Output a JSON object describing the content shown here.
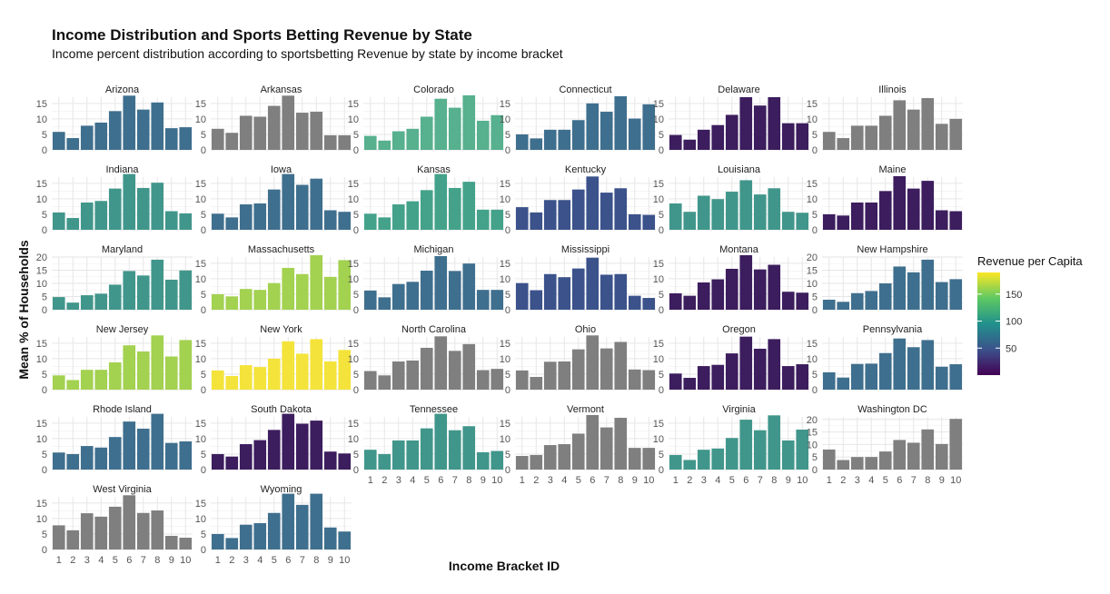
{
  "chart_data": {
    "type": "bar",
    "layout": "faceted small multiples",
    "title": "Income Distribution and Sports Betting Revenue by State",
    "subtitle": "Income percent distribution according to sportsbetting Revenue by state by income bracket",
    "xlabel": "Income Bracket ID",
    "ylabel": "Mean % of Households",
    "categories": [
      "1",
      "2",
      "3",
      "4",
      "5",
      "6",
      "7",
      "8",
      "9",
      "10"
    ],
    "legend": {
      "title": "Revenue per Capita",
      "placement": "right",
      "ticks": [
        "150",
        "100",
        "50"
      ],
      "ticks_values": [
        150,
        100,
        50
      ],
      "range": [
        0,
        190
      ],
      "colors": [
        "#440154",
        "#3b528b",
        "#21918c",
        "#5ec962",
        "#fde725"
      ]
    },
    "no_data_color": "#7f7f7f",
    "panels": [
      {
        "name": "Arizona",
        "color": "#3f6f8e",
        "ymax": 17,
        "ticks": [
          "0",
          "5",
          "10",
          "15"
        ],
        "values": [
          5.8,
          3.8,
          7.8,
          8.8,
          12.5,
          17.5,
          13,
          15.3,
          7,
          7.3
        ]
      },
      {
        "name": "Arkansas",
        "color": "#7f7f7f",
        "ymax": 17,
        "ticks": [
          "0",
          "5",
          "10",
          "15"
        ],
        "values": [
          6.8,
          5.5,
          11,
          10.7,
          14.2,
          17.5,
          12,
          12.3,
          4.7,
          4.7
        ]
      },
      {
        "name": "Colorado",
        "color": "#57b08e",
        "ymax": 17,
        "ticks": [
          "0",
          "5",
          "10",
          "15"
        ],
        "values": [
          4.5,
          3,
          6,
          6.8,
          10.7,
          16.5,
          13.6,
          17.6,
          9.4,
          11.2
        ]
      },
      {
        "name": "Connecticut",
        "color": "#3f6f8e",
        "ymax": 17,
        "ticks": [
          "0",
          "5",
          "10",
          "15"
        ],
        "values": [
          5,
          3.7,
          6.5,
          6.5,
          9.6,
          15,
          12.3,
          17.3,
          10.1,
          14.7
        ]
      },
      {
        "name": "Delaware",
        "color": "#3c1d5e",
        "ymax": 17,
        "ticks": [
          "0",
          "5",
          "10",
          "15"
        ],
        "values": [
          4.8,
          3.3,
          6.5,
          8,
          11.3,
          17,
          14.3,
          17,
          8.6,
          8.6
        ]
      },
      {
        "name": "Illinois",
        "color": "#7f7f7f",
        "ymax": 17,
        "ticks": [
          "0",
          "5",
          "10",
          "15"
        ],
        "values": [
          5.8,
          3.8,
          7.8,
          7.8,
          11,
          16,
          13,
          16.7,
          8.4,
          10
        ]
      },
      {
        "name": "Indiana",
        "color": "#41968b",
        "ymax": 17,
        "ticks": [
          "0",
          "5",
          "10",
          "15"
        ],
        "values": [
          5.6,
          3.8,
          8.8,
          9.3,
          13.3,
          18,
          13.5,
          15.2,
          6,
          5.3
        ]
      },
      {
        "name": "Iowa",
        "color": "#3f6f8e",
        "ymax": 17,
        "ticks": [
          "0",
          "5",
          "10",
          "15"
        ],
        "values": [
          5.2,
          4,
          8.2,
          8.5,
          13,
          18,
          14.5,
          16.5,
          6.3,
          5.8
        ]
      },
      {
        "name": "Kansas",
        "color": "#44a28a",
        "ymax": 17,
        "ticks": [
          "0",
          "5",
          "10",
          "15"
        ],
        "values": [
          5.2,
          4,
          8.2,
          9.2,
          12.8,
          18,
          13.5,
          15.5,
          6.5,
          6.5
        ]
      },
      {
        "name": "Kentucky",
        "color": "#3b528b",
        "ymax": 17,
        "ticks": [
          "0",
          "5",
          "10",
          "15"
        ],
        "values": [
          7.3,
          5.6,
          9.6,
          9.6,
          13,
          17.2,
          12,
          13.4,
          5,
          4.8
        ]
      },
      {
        "name": "Louisiana",
        "color": "#41968b",
        "ymax": 17,
        "ticks": [
          "0",
          "5",
          "10",
          "15"
        ],
        "values": [
          8.5,
          5.8,
          11,
          9.9,
          12.3,
          16,
          11.4,
          13.4,
          5.8,
          5.5
        ]
      },
      {
        "name": "Maine",
        "color": "#3c1d5e",
        "ymax": 17,
        "ticks": [
          "0",
          "5",
          "10",
          "15"
        ],
        "values": [
          5,
          4.6,
          8.8,
          8.8,
          12.5,
          17.3,
          13.3,
          15.8,
          6.3,
          6
        ]
      },
      {
        "name": "Maryland",
        "color": "#41968b",
        "ymax": 20,
        "ticks": [
          "0",
          "5",
          "10",
          "15",
          "20"
        ],
        "values": [
          4.8,
          2.7,
          5.5,
          6.1,
          9.5,
          14.7,
          13,
          19,
          11.4,
          14.9
        ]
      },
      {
        "name": "Massachusetts",
        "color": "#a3d150",
        "ymax": 17,
        "ticks": [
          "0",
          "5",
          "10",
          "15"
        ],
        "values": [
          5,
          4.3,
          6.7,
          6.4,
          8.6,
          13.5,
          11.5,
          17.6,
          10.6,
          16
        ]
      },
      {
        "name": "Michigan",
        "color": "#3f6f8e",
        "ymax": 17,
        "ticks": [
          "0",
          "5",
          "10",
          "15"
        ],
        "values": [
          6.2,
          4,
          8.3,
          9,
          12.6,
          17.3,
          12.5,
          14.9,
          6.4,
          6.4
        ]
      },
      {
        "name": "Mississippi",
        "color": "#3b528b",
        "ymax": 17,
        "ticks": [
          "0",
          "5",
          "10",
          "15"
        ],
        "values": [
          8.6,
          6.3,
          11.5,
          10.5,
          13.3,
          16.8,
          11.3,
          11.5,
          4.5,
          3.8
        ]
      },
      {
        "name": "Montana",
        "color": "#3c1d5e",
        "ymax": 17,
        "ticks": [
          "0",
          "5",
          "10",
          "15"
        ],
        "values": [
          5.3,
          4.5,
          8.8,
          9.8,
          13.2,
          17.6,
          13,
          14.5,
          5.8,
          5.5
        ]
      },
      {
        "name": "New Hampshire",
        "color": "#3f6f8e",
        "ymax": 20,
        "ticks": [
          "0",
          "5",
          "10",
          "15",
          "20"
        ],
        "values": [
          3.8,
          3,
          6.3,
          7.1,
          10,
          16.4,
          14.2,
          19,
          10.5,
          11.6
        ]
      },
      {
        "name": "New Jersey",
        "color": "#a3d150",
        "ymax": 17,
        "ticks": [
          "0",
          "5",
          "10",
          "15"
        ],
        "values": [
          4.6,
          3.1,
          6.4,
          6.4,
          8.8,
          14.3,
          12.3,
          17.5,
          10.7,
          16
        ]
      },
      {
        "name": "New York",
        "color": "#f4e33b",
        "ymax": 17,
        "ticks": [
          "0",
          "5",
          "10",
          "15"
        ],
        "values": [
          6.2,
          4.4,
          7.9,
          7.3,
          10,
          15.6,
          11.6,
          16.3,
          9.1,
          12.8
        ]
      },
      {
        "name": "North Carolina",
        "color": "#7f7f7f",
        "ymax": 17,
        "ticks": [
          "0",
          "5",
          "10",
          "15"
        ],
        "values": [
          6,
          4.6,
          9.1,
          9.4,
          13.5,
          17.2,
          12.5,
          14.7,
          6.3,
          6.7
        ]
      },
      {
        "name": "Ohio",
        "color": "#7f7f7f",
        "ymax": 17,
        "ticks": [
          "0",
          "5",
          "10",
          "15"
        ],
        "values": [
          6.2,
          4.1,
          9,
          9.1,
          13,
          17.5,
          13.3,
          15.4,
          6.5,
          6.3
        ]
      },
      {
        "name": "Oregon",
        "color": "#3c1d5e",
        "ymax": 17,
        "ticks": [
          "0",
          "5",
          "10",
          "15"
        ],
        "values": [
          5.2,
          3.8,
          7.6,
          8,
          11.7,
          17.1,
          13.2,
          16.3,
          7.6,
          8.2
        ]
      },
      {
        "name": "Pennsylvania",
        "color": "#3f6f8e",
        "ymax": 17,
        "ticks": [
          "0",
          "5",
          "10",
          "15"
        ],
        "values": [
          5.6,
          3.9,
          8.3,
          8.4,
          11.8,
          16.5,
          13.7,
          16,
          7.4,
          8.2
        ]
      },
      {
        "name": "Rhode Island",
        "color": "#3f6f8e",
        "ymax": 17,
        "ticks": [
          "0",
          "5",
          "10",
          "15"
        ],
        "values": [
          5.5,
          5,
          7.6,
          7.1,
          10.5,
          15.5,
          13.2,
          18,
          8.6,
          9.1
        ]
      },
      {
        "name": "South Dakota",
        "color": "#3c1d5e",
        "ymax": 17,
        "ticks": [
          "0",
          "5",
          "10",
          "15"
        ],
        "values": [
          5,
          4.2,
          8.2,
          9.5,
          12.8,
          18,
          14.8,
          15.8,
          5.8,
          5.2
        ]
      },
      {
        "name": "Tennessee",
        "color": "#41968b",
        "ymax": 17,
        "ticks": [
          "0",
          "5",
          "10",
          "15"
        ],
        "values": [
          6.4,
          5,
          9.4,
          9.4,
          13.3,
          18,
          12.7,
          14,
          5.6,
          6
        ]
      },
      {
        "name": "Vermont",
        "color": "#7f7f7f",
        "ymax": 17,
        "ticks": [
          "0",
          "5",
          "10",
          "15"
        ],
        "values": [
          4.4,
          4.7,
          7.9,
          8.2,
          11.6,
          17.6,
          13.6,
          16.7,
          7,
          7
        ]
      },
      {
        "name": "Virginia",
        "color": "#41968b",
        "ymax": 17,
        "ticks": [
          "0",
          "5",
          "10",
          "15"
        ],
        "values": [
          4.7,
          3.1,
          6.4,
          6.8,
          10.2,
          16.1,
          12.7,
          17.5,
          9.4,
          12.9
        ]
      },
      {
        "name": "Washington DC",
        "color": "#7f7f7f",
        "ymax": 21,
        "ticks": [
          "0",
          "5",
          "10",
          "15",
          "20"
        ],
        "values": [
          8,
          3.8,
          5,
          5,
          7.2,
          11.8,
          10.7,
          16,
          10.2,
          20.2
        ]
      },
      {
        "name": "West Virginia",
        "color": "#7f7f7f",
        "ymax": 17,
        "ticks": [
          "0",
          "5",
          "10",
          "15"
        ],
        "values": [
          7.8,
          6.2,
          11.7,
          10.6,
          13.8,
          17.5,
          11.8,
          12.6,
          4.4,
          3.8
        ]
      },
      {
        "name": "Wyoming",
        "color": "#3f6f8e",
        "ymax": 17,
        "ticks": [
          "0",
          "5",
          "10",
          "15"
        ],
        "values": [
          5,
          3.7,
          8,
          8.5,
          11.8,
          18,
          14.4,
          18,
          7.1,
          5.8
        ]
      }
    ]
  }
}
